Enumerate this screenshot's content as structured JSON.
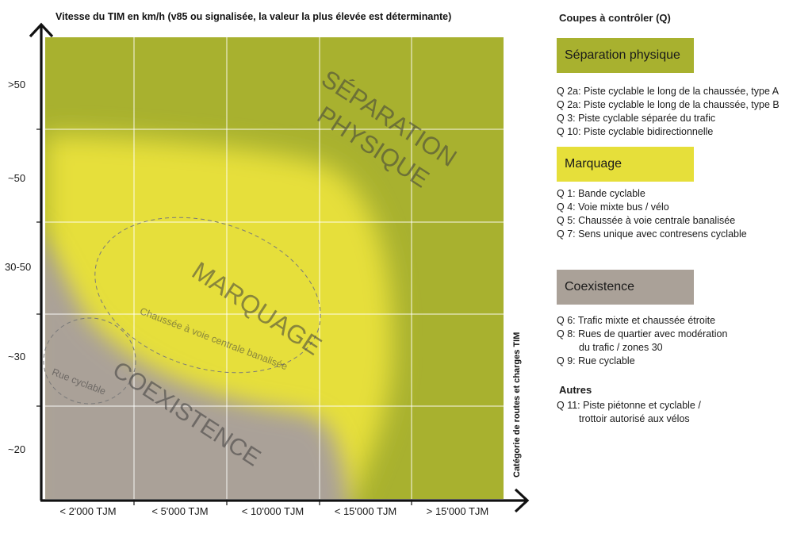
{
  "chart": {
    "title": "Vitesse du TIM en km/h (v85 ou signalisée, la valeur la plus élevée est déterminante)",
    "y_axis_label": "Catégorie de routes et charges TIM",
    "y_ticks": [
      ">50",
      "~50",
      "30-50",
      "~30",
      "~20"
    ],
    "x_ticks": [
      "< 2'000 TJM",
      "< 5'000 TJM",
      "< 10'000 TJM",
      "< 15'000 TJM",
      "> 15'000 TJM"
    ],
    "zones": {
      "separation_line1": "SÉPARATION",
      "separation_line2": "PHYSIQUE",
      "marquage": "MARQUAGE",
      "coexistence": "COEXISTENCE",
      "chaussee": "Chaussée à voie centrale banalisée",
      "rue": "Rue cyclable"
    },
    "colors": {
      "separation": "#a8b12f",
      "marquage": "#e6df3a",
      "coexistence": "#aaa198"
    }
  },
  "legend": {
    "title": "Coupes à contrôler (Q)",
    "categories": [
      {
        "label": "Séparation physique",
        "color": "#a8b12f",
        "items": [
          "Q 2a: Piste cyclable le long de la chaussée, type A",
          "Q 2a: Piste cyclable le long de la chaussée, type B",
          "Q 3: Piste cyclable séparée du trafic",
          "Q 10: Piste cyclable bidirectionnelle"
        ]
      },
      {
        "label": "Marquage",
        "color": "#e6df3a",
        "items": [
          "Q 1: Bande cyclable",
          "Q 4: Voie mixte bus / vélo",
          "Q 5: Chaussée à voie centrale banalisée",
          "Q 7: Sens unique avec contresens cyclable"
        ]
      },
      {
        "label": "Coexistence",
        "color": "#aaa198",
        "items": [
          "Q 6: Trafic mixte et chaussée étroite",
          "Q 8: Rues de quartier avec modération",
          "du trafic / zones 30",
          "Q 9: Rue cyclable"
        ]
      }
    ],
    "other": {
      "title": "Autres",
      "items": [
        "Q 11: Piste piétonne et cyclable /",
        "trottoir autorisé aux vélos"
      ]
    }
  }
}
